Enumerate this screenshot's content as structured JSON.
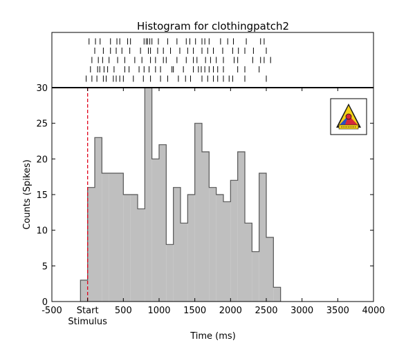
{
  "chart_data": {
    "type": "bar",
    "title": "Histogram for clothingpatch2",
    "xlabel": "Time (ms)",
    "ylabel": "Counts (Spikes)",
    "xlim": [
      -500,
      4000
    ],
    "ylim": [
      0,
      30
    ],
    "x_ticks": [
      -500,
      0,
      500,
      1000,
      1500,
      2000,
      2500,
      3000,
      3500,
      4000
    ],
    "x_tick_labels": [
      "-500",
      "Start",
      "500",
      "1000",
      "1500",
      "2000",
      "2500",
      "3000",
      "3500",
      "4000"
    ],
    "x_tick_sublabel": "Stimulus",
    "y_ticks": [
      0,
      5,
      10,
      15,
      20,
      25,
      30
    ],
    "y_tick_labels": [
      "0",
      "5",
      "10",
      "15",
      "20",
      "25",
      "30"
    ],
    "bin_width_ms": 100,
    "bin_starts_ms": [
      -100,
      0,
      100,
      200,
      300,
      400,
      500,
      600,
      700,
      800,
      900,
      1000,
      1100,
      1200,
      1300,
      1400,
      1500,
      1600,
      1700,
      1800,
      1900,
      2000,
      2100,
      2200,
      2300,
      2400,
      2500,
      2600
    ],
    "counts": [
      3,
      16,
      23,
      18,
      18,
      18,
      15,
      15,
      13,
      30,
      20,
      22,
      8,
      16,
      11,
      15,
      25,
      21,
      16,
      15,
      14,
      17,
      21,
      11,
      7,
      18,
      9,
      2
    ],
    "stimulus_marker_ms": 0,
    "raster_trials": [
      [
        20,
        110,
        175,
        320,
        410,
        450,
        560,
        600,
        790,
        820,
        840,
        870,
        900,
        990,
        1120,
        1250,
        1380,
        1430,
        1510,
        1600,
        1640,
        1700,
        1860,
        1960,
        2040,
        2220,
        2420,
        2470
      ],
      [
        100,
        220,
        320,
        400,
        480,
        590,
        740,
        850,
        880,
        980,
        1060,
        1160,
        1290,
        1400,
        1480,
        1600,
        1680,
        1760,
        1890,
        2030,
        2110,
        2200,
        2320,
        2500
      ],
      [
        60,
        150,
        210,
        300,
        420,
        520,
        660,
        760,
        880,
        950,
        1060,
        1100,
        1250,
        1380,
        1480,
        1530,
        1650,
        1720,
        1800,
        1900,
        2050,
        2100,
        2310,
        2420,
        2470,
        2560
      ],
      [
        40,
        140,
        170,
        230,
        280,
        370,
        520,
        580,
        720,
        790,
        860,
        950,
        1020,
        1180,
        1200,
        1340,
        1480,
        1550,
        1590,
        1640,
        1700,
        1760,
        1820,
        1900,
        2100,
        2200,
        2400
      ],
      [
        -20,
        60,
        130,
        220,
        260,
        360,
        400,
        450,
        500,
        640,
        780,
        880,
        1020,
        1120,
        1270,
        1370,
        1440,
        1600,
        1680,
        1760,
        1820,
        1900,
        1980,
        2030,
        2200,
        2500
      ]
    ],
    "colors": {
      "bars": "#bfbfbf",
      "bar_edge": "#555555",
      "stimulus_line": "#e0001a",
      "raster_ticks": "#000000"
    },
    "grid": false,
    "legend": "none"
  }
}
